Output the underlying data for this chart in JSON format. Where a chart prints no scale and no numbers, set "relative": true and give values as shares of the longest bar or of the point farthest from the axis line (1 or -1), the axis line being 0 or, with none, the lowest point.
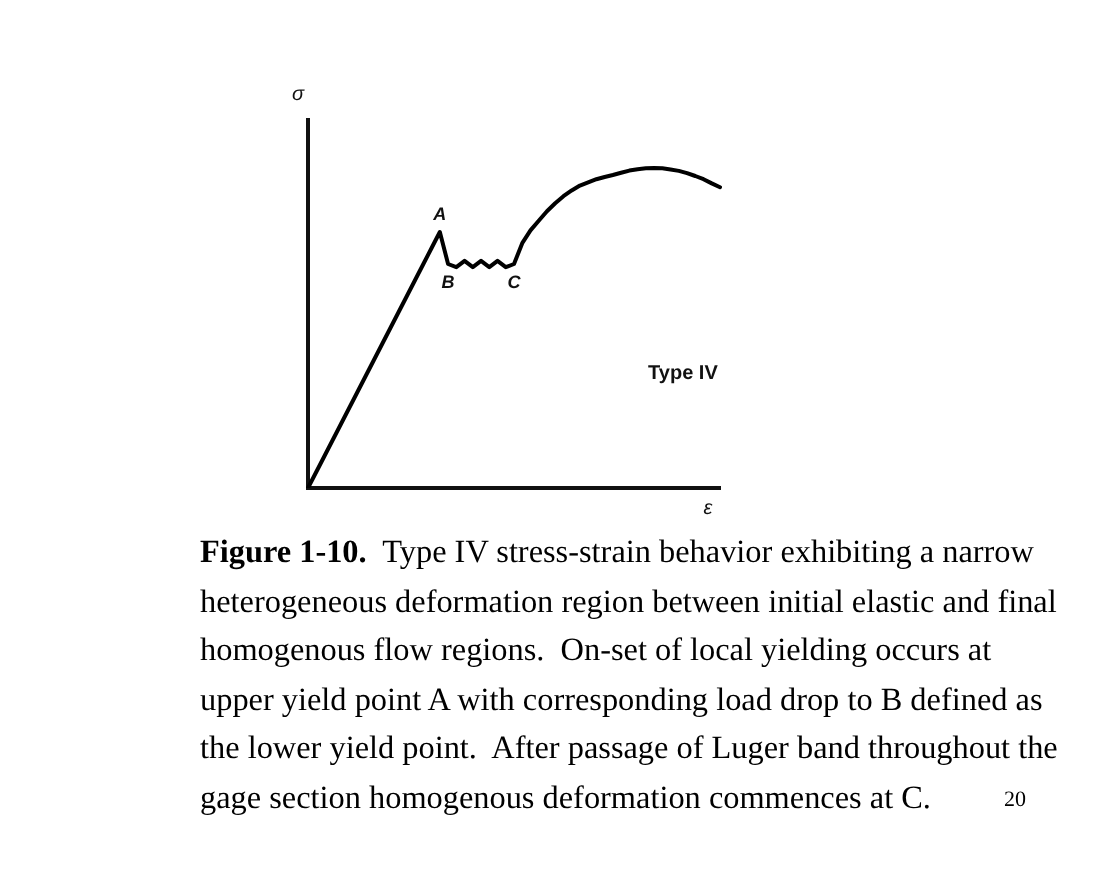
{
  "chart_data": {
    "type": "line",
    "title": "Type IV",
    "xlabel": "ε",
    "ylabel": "σ",
    "relative": true,
    "categories": [
      null,
      null,
      null,
      null,
      null,
      null,
      null,
      null,
      null,
      null,
      null,
      null,
      null,
      null,
      null,
      null,
      null,
      null,
      null,
      null,
      null,
      null,
      null,
      null,
      null,
      null,
      null,
      null,
      null,
      null,
      null,
      null,
      null,
      null,
      null,
      null,
      null,
      null,
      null,
      null,
      null,
      null,
      null,
      null,
      null,
      null,
      null,
      null,
      null,
      null,
      null
    ],
    "values": [
      0,
      0.05,
      0.1,
      0.15,
      0.2,
      0.25,
      0.3,
      0.35,
      0.4,
      0.45,
      0.5,
      0.55,
      0.6,
      0.65,
      0.7,
      0.75,
      0.8,
      0.7,
      0.69,
      0.71,
      0.69,
      0.71,
      0.69,
      0.71,
      0.69,
      0.7,
      0.765,
      0.805,
      0.835,
      0.865,
      0.89,
      0.912,
      0.93,
      0.945,
      0.955,
      0.965,
      0.972,
      0.978,
      0.985,
      0.992,
      0.996,
      0.999,
      1,
      0.999,
      0.995,
      0.991,
      0.984,
      0.975,
      0.965,
      0.952,
      0.94
    ],
    "color": "#000000",
    "marker": "none",
    "annotations": [
      {
        "text": "A",
        "y": 0.8
      },
      {
        "text": "B",
        "y": 0.7
      },
      {
        "text": "C",
        "y": 0.7
      },
      "Figure 1-10.  Type IV stress-strain behavior exhibiting a narrow heterogeneous deformation region between initial elastic and final homogenous flow regions.  On-set of local yielding occurs at upper yield point A with corresponding load drop to B defined as the lower yield point.  After passage of Luger band throughout the gage section homogenous deformation commences at C.",
      "20"
    ]
  }
}
